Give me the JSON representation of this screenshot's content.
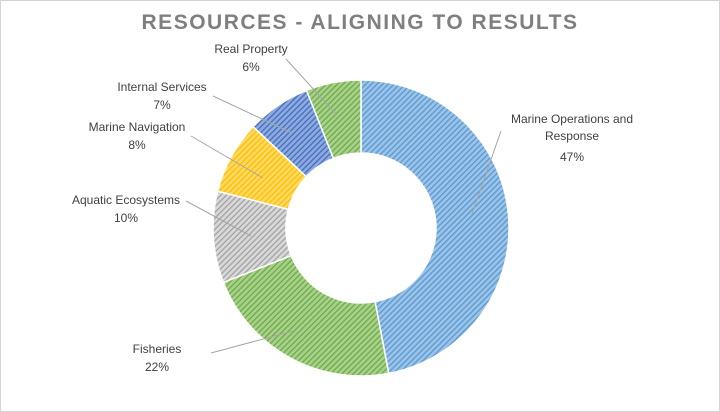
{
  "chart_data": {
    "type": "pie",
    "donut": true,
    "title": "RESOURCES - ALIGNING TO RESULTS",
    "legend": "none",
    "slices": [
      {
        "name": "Marine Operations and Response",
        "value": 47,
        "label_lines": [
          "Marine Operations and",
          "Response",
          "47%"
        ],
        "color": "#9dc3e6",
        "hatch": "#5b9bd5"
      },
      {
        "name": "Fisheries",
        "value": 22,
        "label_lines": [
          "Fisheries",
          "22%"
        ],
        "color": "#a9d18e",
        "hatch": "#70ad47"
      },
      {
        "name": "Aquatic Ecosystems",
        "value": 10,
        "label_lines": [
          "Aquatic Ecosystems",
          "10%"
        ],
        "color": "#d9d9d9",
        "hatch": "#a5a5a5"
      },
      {
        "name": "Marine Navigation",
        "value": 8,
        "label_lines": [
          "Marine Navigation",
          "8%"
        ],
        "color": "#ffd966",
        "hatch": "#ffc000"
      },
      {
        "name": "Internal Services",
        "value": 7,
        "label_lines": [
          "Internal Services",
          "7%"
        ],
        "color": "#8faadc",
        "hatch": "#4472c4"
      },
      {
        "name": "Real Property",
        "value": 6,
        "label_lines": [
          "Real Property",
          "6%"
        ],
        "color": "#a9d18e",
        "hatch": "#70ad47"
      }
    ]
  }
}
